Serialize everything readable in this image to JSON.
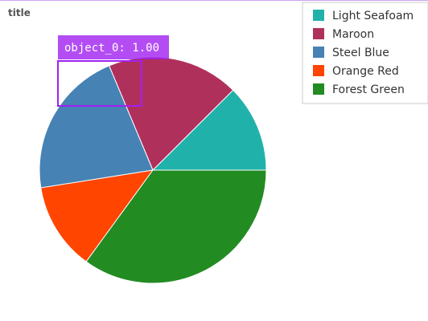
{
  "chart_data": {
    "type": "pie",
    "title": "title",
    "categories": [
      "Light Seafoam",
      "Maroon",
      "Steel Blue",
      "Orange Red",
      "Forest Green"
    ],
    "values": [
      12.5,
      18.8,
      21.2,
      12.5,
      35.0
    ],
    "colors": [
      "#20b2aa",
      "#b0305c",
      "#4682b4",
      "#ff4500",
      "#228b22"
    ],
    "legend": {
      "placement": "top-right",
      "entries": [
        "Light Seafoam",
        "Maroon",
        "Steel Blue",
        "Orange Red",
        "Forest Green"
      ]
    },
    "annotation": {
      "label": "object_0: 1.00",
      "box_color": "#a020f0"
    }
  }
}
